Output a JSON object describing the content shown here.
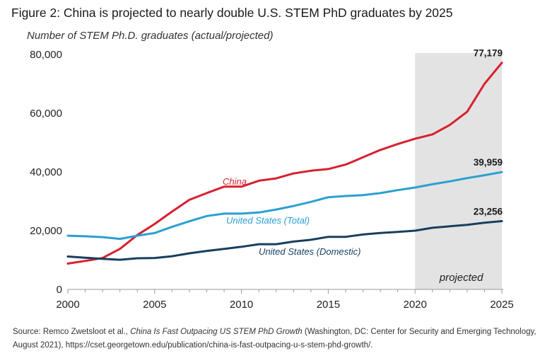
{
  "title": "Figure 2: China is projected to nearly double U.S. STEM PhD graduates by 2025",
  "subtitle": "Number of STEM Ph.D. graduates (actual/projected)",
  "source": {
    "prefix": "Source: Remco Zwetsloot et al., ",
    "italic": "China Is Fast Outpacing US STEM PhD Growth",
    "suffix": " (Washington, DC: Center for Security and Emerging Technology, August 2021), https://cset.georgetown.edu/publication/china-is-fast-outpacing-u-s-stem-phd-growth/."
  },
  "chart_data": {
    "type": "line",
    "x_ticks": [
      2000,
      2005,
      2010,
      2015,
      2020,
      2025
    ],
    "y_ticks": [
      0,
      20000,
      40000,
      60000,
      80000
    ],
    "y_tick_labels": [
      "0",
      "20,000",
      "40,000",
      "60,000",
      "80,000"
    ],
    "xlim": [
      2000,
      2025
    ],
    "ylim": [
      0,
      80000
    ],
    "grid": false,
    "projected_region": {
      "from": 2020,
      "to": 2025,
      "label": "projected",
      "color": "#e3e3e3"
    },
    "x": [
      2000,
      2001,
      2002,
      2003,
      2004,
      2005,
      2006,
      2007,
      2008,
      2009,
      2010,
      2011,
      2012,
      2013,
      2014,
      2015,
      2016,
      2017,
      2018,
      2019,
      2020,
      2021,
      2022,
      2023,
      2024,
      2025
    ],
    "series": [
      {
        "name": "China",
        "color": "#d8202f",
        "end_label": "77,179",
        "values": [
          8800,
          9700,
          10700,
          13800,
          18500,
          22300,
          26500,
          30500,
          32800,
          35000,
          35000,
          37000,
          37800,
          39500,
          40400,
          41000,
          42500,
          45000,
          47500,
          49500,
          51300,
          52800,
          56000,
          60500,
          70000,
          77179
        ]
      },
      {
        "name": "United States (Total)",
        "color": "#2aa0d0",
        "end_label": "39,959",
        "values": [
          18300,
          18100,
          17800,
          17200,
          18300,
          19200,
          21300,
          23200,
          25000,
          25800,
          25800,
          26200,
          27200,
          28400,
          29800,
          31400,
          31800,
          32100,
          32800,
          33800,
          34700,
          35800,
          36800,
          37900,
          38900,
          39959
        ]
      },
      {
        "name": "United States (Domestic)",
        "color": "#173f5f",
        "end_label": "23,256",
        "values": [
          11200,
          10800,
          10400,
          10100,
          10600,
          10700,
          11300,
          12300,
          13100,
          13800,
          14500,
          15400,
          15400,
          16300,
          16900,
          17900,
          17900,
          18700,
          19200,
          19600,
          20000,
          21000,
          21500,
          22000,
          22700,
          23256
        ]
      }
    ]
  }
}
